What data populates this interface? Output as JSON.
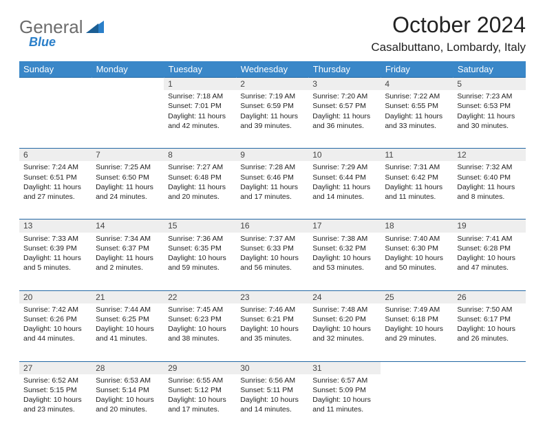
{
  "header": {
    "logo_general": "General",
    "logo_blue": "Blue",
    "month_title": "October 2024",
    "location": "Casalbuttano, Lombardy, Italy"
  },
  "colors": {
    "header_bg": "#3a87c8",
    "accent": "#2a7fc9",
    "daynum_bg": "#eeeeee",
    "rule": "#2066a3",
    "logo_gray": "#6c6c6c"
  },
  "columns": [
    "Sunday",
    "Monday",
    "Tuesday",
    "Wednesday",
    "Thursday",
    "Friday",
    "Saturday"
  ],
  "weeks": [
    {
      "nums": [
        "",
        "",
        "1",
        "2",
        "3",
        "4",
        "5"
      ],
      "cells": [
        null,
        null,
        {
          "sunrise": "7:18 AM",
          "sunset": "7:01 PM",
          "daylight": "11 hours and 42 minutes."
        },
        {
          "sunrise": "7:19 AM",
          "sunset": "6:59 PM",
          "daylight": "11 hours and 39 minutes."
        },
        {
          "sunrise": "7:20 AM",
          "sunset": "6:57 PM",
          "daylight": "11 hours and 36 minutes."
        },
        {
          "sunrise": "7:22 AM",
          "sunset": "6:55 PM",
          "daylight": "11 hours and 33 minutes."
        },
        {
          "sunrise": "7:23 AM",
          "sunset": "6:53 PM",
          "daylight": "11 hours and 30 minutes."
        }
      ]
    },
    {
      "nums": [
        "6",
        "7",
        "8",
        "9",
        "10",
        "11",
        "12"
      ],
      "cells": [
        {
          "sunrise": "7:24 AM",
          "sunset": "6:51 PM",
          "daylight": "11 hours and 27 minutes."
        },
        {
          "sunrise": "7:25 AM",
          "sunset": "6:50 PM",
          "daylight": "11 hours and 24 minutes."
        },
        {
          "sunrise": "7:27 AM",
          "sunset": "6:48 PM",
          "daylight": "11 hours and 20 minutes."
        },
        {
          "sunrise": "7:28 AM",
          "sunset": "6:46 PM",
          "daylight": "11 hours and 17 minutes."
        },
        {
          "sunrise": "7:29 AM",
          "sunset": "6:44 PM",
          "daylight": "11 hours and 14 minutes."
        },
        {
          "sunrise": "7:31 AM",
          "sunset": "6:42 PM",
          "daylight": "11 hours and 11 minutes."
        },
        {
          "sunrise": "7:32 AM",
          "sunset": "6:40 PM",
          "daylight": "11 hours and 8 minutes."
        }
      ]
    },
    {
      "nums": [
        "13",
        "14",
        "15",
        "16",
        "17",
        "18",
        "19"
      ],
      "cells": [
        {
          "sunrise": "7:33 AM",
          "sunset": "6:39 PM",
          "daylight": "11 hours and 5 minutes."
        },
        {
          "sunrise": "7:34 AM",
          "sunset": "6:37 PM",
          "daylight": "11 hours and 2 minutes."
        },
        {
          "sunrise": "7:36 AM",
          "sunset": "6:35 PM",
          "daylight": "10 hours and 59 minutes."
        },
        {
          "sunrise": "7:37 AM",
          "sunset": "6:33 PM",
          "daylight": "10 hours and 56 minutes."
        },
        {
          "sunrise": "7:38 AM",
          "sunset": "6:32 PM",
          "daylight": "10 hours and 53 minutes."
        },
        {
          "sunrise": "7:40 AM",
          "sunset": "6:30 PM",
          "daylight": "10 hours and 50 minutes."
        },
        {
          "sunrise": "7:41 AM",
          "sunset": "6:28 PM",
          "daylight": "10 hours and 47 minutes."
        }
      ]
    },
    {
      "nums": [
        "20",
        "21",
        "22",
        "23",
        "24",
        "25",
        "26"
      ],
      "cells": [
        {
          "sunrise": "7:42 AM",
          "sunset": "6:26 PM",
          "daylight": "10 hours and 44 minutes."
        },
        {
          "sunrise": "7:44 AM",
          "sunset": "6:25 PM",
          "daylight": "10 hours and 41 minutes."
        },
        {
          "sunrise": "7:45 AM",
          "sunset": "6:23 PM",
          "daylight": "10 hours and 38 minutes."
        },
        {
          "sunrise": "7:46 AM",
          "sunset": "6:21 PM",
          "daylight": "10 hours and 35 minutes."
        },
        {
          "sunrise": "7:48 AM",
          "sunset": "6:20 PM",
          "daylight": "10 hours and 32 minutes."
        },
        {
          "sunrise": "7:49 AM",
          "sunset": "6:18 PM",
          "daylight": "10 hours and 29 minutes."
        },
        {
          "sunrise": "7:50 AM",
          "sunset": "6:17 PM",
          "daylight": "10 hours and 26 minutes."
        }
      ]
    },
    {
      "nums": [
        "27",
        "28",
        "29",
        "30",
        "31",
        "",
        ""
      ],
      "cells": [
        {
          "sunrise": "6:52 AM",
          "sunset": "5:15 PM",
          "daylight": "10 hours and 23 minutes."
        },
        {
          "sunrise": "6:53 AM",
          "sunset": "5:14 PM",
          "daylight": "10 hours and 20 minutes."
        },
        {
          "sunrise": "6:55 AM",
          "sunset": "5:12 PM",
          "daylight": "10 hours and 17 minutes."
        },
        {
          "sunrise": "6:56 AM",
          "sunset": "5:11 PM",
          "daylight": "10 hours and 14 minutes."
        },
        {
          "sunrise": "6:57 AM",
          "sunset": "5:09 PM",
          "daylight": "10 hours and 11 minutes."
        },
        null,
        null
      ]
    }
  ],
  "labels": {
    "sunrise": "Sunrise:",
    "sunset": "Sunset:",
    "daylight": "Daylight:"
  }
}
